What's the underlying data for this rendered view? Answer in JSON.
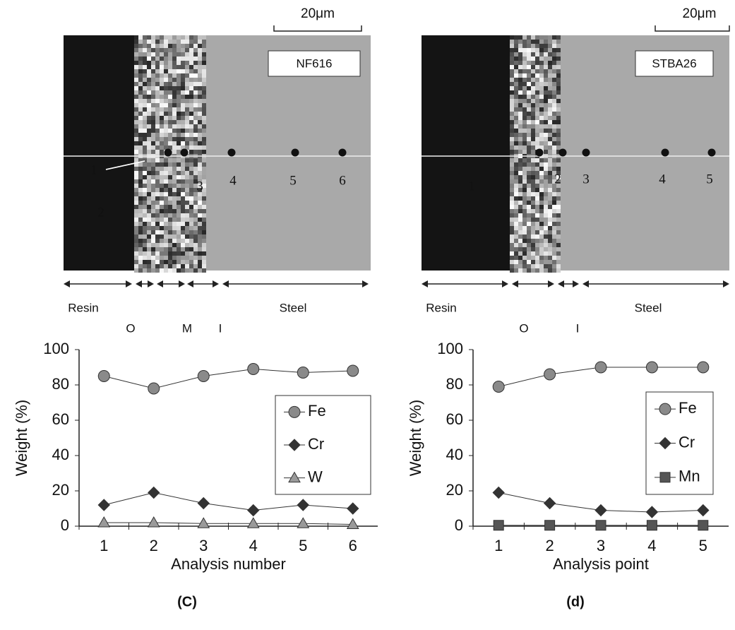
{
  "micrographs": [
    {
      "scale_bar": "20μm",
      "label": "NF616",
      "points": [
        "1",
        "2",
        "3",
        "4",
        "5",
        "6"
      ],
      "zones": [
        "Resin",
        "O",
        "M",
        "I",
        "Steel"
      ],
      "panel": "(C)"
    },
    {
      "scale_bar": "20μm",
      "label": "STBA26",
      "points": [
        "1",
        "2",
        "3",
        "4",
        "5"
      ],
      "zones": [
        "Resin",
        "O",
        "I",
        "Steel"
      ],
      "panel": "(d)"
    }
  ],
  "chart_data": [
    {
      "type": "line",
      "xlabel": "Analysis number",
      "ylabel": "Weight (%)",
      "categories": [
        "1",
        "2",
        "3",
        "4",
        "5",
        "6"
      ],
      "ylim": [
        0,
        100
      ],
      "yticks": [
        0,
        20,
        40,
        60,
        80,
        100
      ],
      "series": [
        {
          "name": "Fe",
          "color": "#8a8a8a",
          "marker": "circle",
          "values": [
            85,
            78,
            85,
            89,
            87,
            88
          ]
        },
        {
          "name": "Cr",
          "color": "#333333",
          "marker": "diamond",
          "values": [
            12,
            19,
            13,
            9,
            12,
            10
          ]
        },
        {
          "name": "W",
          "color": "#9a9a9a",
          "marker": "triangle",
          "values": [
            2,
            2,
            1.5,
            1.5,
            1.5,
            1
          ]
        }
      ]
    },
    {
      "type": "line",
      "xlabel": "Analysis point",
      "ylabel": "Weight (%)",
      "categories": [
        "1",
        "2",
        "3",
        "4",
        "5"
      ],
      "ylim": [
        0,
        100
      ],
      "yticks": [
        0,
        20,
        40,
        60,
        80,
        100
      ],
      "series": [
        {
          "name": "Fe",
          "color": "#8a8a8a",
          "marker": "circle",
          "values": [
            79,
            86,
            90,
            90,
            90
          ]
        },
        {
          "name": "Cr",
          "color": "#333333",
          "marker": "diamond",
          "values": [
            19,
            13,
            9,
            8,
            9
          ]
        },
        {
          "name": "Mn",
          "color": "#555555",
          "marker": "square",
          "values": [
            0.5,
            0.5,
            0.5,
            0.5,
            0.5
          ]
        }
      ]
    }
  ]
}
